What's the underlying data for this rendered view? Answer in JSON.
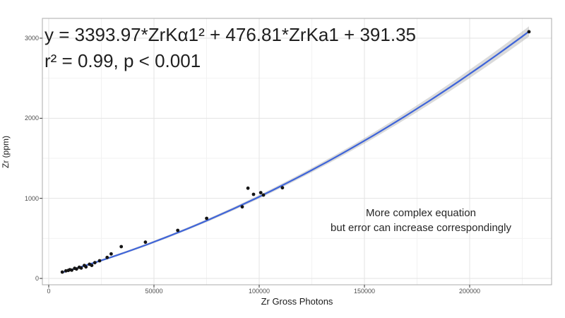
{
  "figure": {
    "background": "#ffffff",
    "panel_border_color": "#ababab",
    "grid_major_color": "#e3e3e3",
    "grid_minor_color": "#f2f2f2",
    "tick_color": "#333333"
  },
  "annotations": {
    "equation_line1": "y = 3393.97*ZrKα1² + 476.81*ZrKa1 + 391.35",
    "equation_line2": "r² = 0.99, p < 0.001",
    "note_line1": "More complex equation",
    "note_line2": "but error can increase correspondingly"
  },
  "chart_data": {
    "type": "scatter",
    "title": "",
    "xlabel": "Zr Gross Photons",
    "ylabel": "Zr (ppm)",
    "xlim": [
      -3000,
      239000
    ],
    "ylim": [
      -80,
      3250
    ],
    "x_ticks": [
      0,
      50000,
      100000,
      150000,
      200000
    ],
    "y_ticks": [
      0,
      1000,
      2000,
      3000
    ],
    "x_minor_ticks": [
      25000,
      75000,
      125000,
      175000,
      225000
    ],
    "y_minor_ticks": [
      500,
      1500,
      2500
    ],
    "grid": true,
    "legend": false,
    "point_color": "#151515",
    "points": [
      [
        6450,
        79
      ],
      [
        8150,
        94
      ],
      [
        9300,
        100
      ],
      [
        10050,
        109
      ],
      [
        10950,
        103
      ],
      [
        12300,
        126
      ],
      [
        13200,
        117
      ],
      [
        14500,
        139
      ],
      [
        15450,
        130
      ],
      [
        16900,
        162
      ],
      [
        17700,
        144
      ],
      [
        19350,
        177
      ],
      [
        20450,
        162
      ],
      [
        21900,
        197
      ],
      [
        24150,
        221
      ],
      [
        27750,
        262
      ],
      [
        29650,
        306
      ],
      [
        34450,
        397
      ],
      [
        45950,
        453
      ],
      [
        61300,
        600
      ],
      [
        75050,
        750
      ],
      [
        91950,
        894
      ],
      [
        94650,
        1127
      ],
      [
        97300,
        1050
      ],
      [
        100750,
        1071
      ],
      [
        102000,
        1041
      ],
      [
        111050,
        1132
      ],
      [
        228200,
        3080
      ]
    ],
    "fit": {
      "type": "quadratic",
      "equation_text": "y = 3393.97*ZrKa1^2 + 476.81*ZrKa1 + 391.35",
      "r_squared": 0.99,
      "p_value": "< 0.001",
      "line_color": "#3e64d9",
      "ribbon_color": "#9e9e9e",
      "draw_coeffs_x_in_1e5": [
        270.3,
        722.8,
        26.9
      ],
      "ribbon_halfwidth_ppm": [
        12,
        10
      ],
      "x_range": [
        6450,
        228200
      ]
    }
  }
}
